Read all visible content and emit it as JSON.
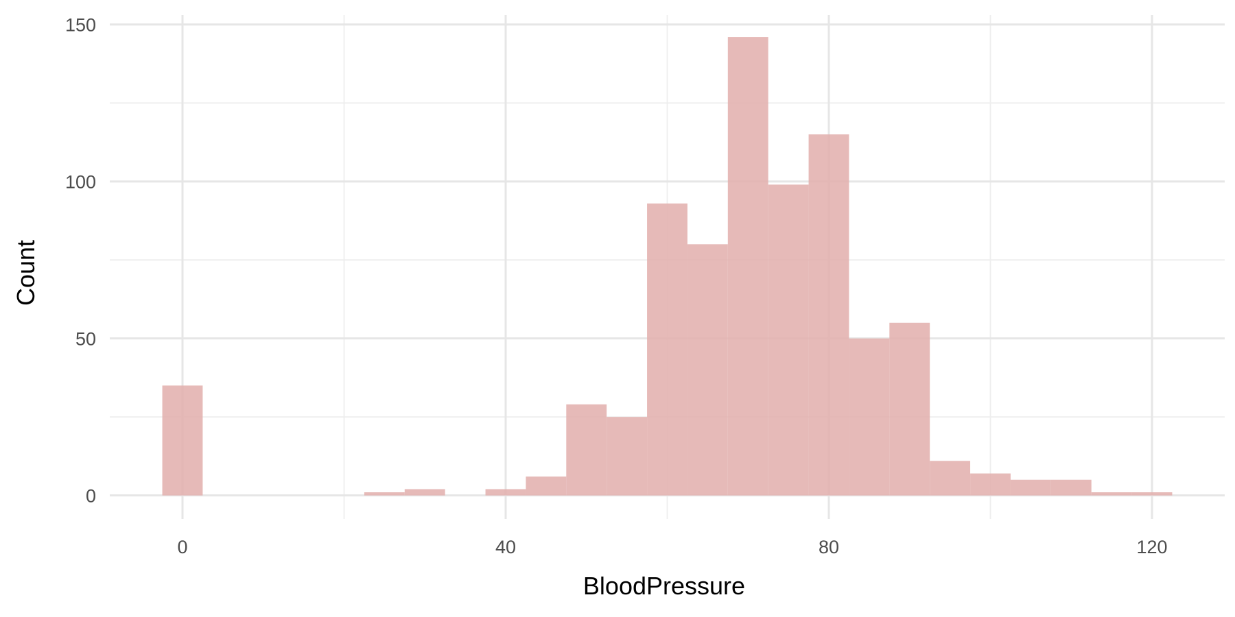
{
  "chart_data": {
    "type": "bar",
    "subtype": "histogram",
    "xlabel": "BloodPressure",
    "ylabel": "Count",
    "xlim": [
      -9,
      129
    ],
    "ylim": [
      -7.5,
      153
    ],
    "bin_width": 5,
    "x_ticks": [
      0,
      40,
      80,
      120
    ],
    "x_tick_labels": [
      "0",
      "40",
      "80",
      "120"
    ],
    "y_ticks": [
      0,
      50,
      100,
      150
    ],
    "y_tick_labels": [
      "0",
      "50",
      "100",
      "150"
    ],
    "x_minor_ticks": [
      20,
      60,
      100
    ],
    "y_minor_ticks": [
      25,
      75,
      125
    ],
    "grid": true,
    "legend": "none",
    "bar_color": "#e3b0ae",
    "bins": [
      {
        "x_start": -2.5,
        "x_end": 2.5,
        "count": 35
      },
      {
        "x_start": 2.5,
        "x_end": 7.5,
        "count": 0
      },
      {
        "x_start": 7.5,
        "x_end": 12.5,
        "count": 0
      },
      {
        "x_start": 12.5,
        "x_end": 17.5,
        "count": 0
      },
      {
        "x_start": 17.5,
        "x_end": 22.5,
        "count": 0
      },
      {
        "x_start": 22.5,
        "x_end": 27.5,
        "count": 1
      },
      {
        "x_start": 27.5,
        "x_end": 32.5,
        "count": 2
      },
      {
        "x_start": 32.5,
        "x_end": 37.5,
        "count": 0
      },
      {
        "x_start": 37.5,
        "x_end": 42.5,
        "count": 2
      },
      {
        "x_start": 42.5,
        "x_end": 47.5,
        "count": 6
      },
      {
        "x_start": 47.5,
        "x_end": 52.5,
        "count": 29
      },
      {
        "x_start": 52.5,
        "x_end": 57.5,
        "count": 25
      },
      {
        "x_start": 57.5,
        "x_end": 62.5,
        "count": 93
      },
      {
        "x_start": 62.5,
        "x_end": 67.5,
        "count": 80
      },
      {
        "x_start": 67.5,
        "x_end": 72.5,
        "count": 146
      },
      {
        "x_start": 72.5,
        "x_end": 77.5,
        "count": 99
      },
      {
        "x_start": 77.5,
        "x_end": 82.5,
        "count": 115
      },
      {
        "x_start": 82.5,
        "x_end": 87.5,
        "count": 50
      },
      {
        "x_start": 87.5,
        "x_end": 92.5,
        "count": 55
      },
      {
        "x_start": 92.5,
        "x_end": 97.5,
        "count": 11
      },
      {
        "x_start": 97.5,
        "x_end": 102.5,
        "count": 7
      },
      {
        "x_start": 102.5,
        "x_end": 107.5,
        "count": 5
      },
      {
        "x_start": 107.5,
        "x_end": 112.5,
        "count": 5
      },
      {
        "x_start": 112.5,
        "x_end": 117.5,
        "count": 1
      },
      {
        "x_start": 117.5,
        "x_end": 122.5,
        "count": 1
      }
    ]
  }
}
